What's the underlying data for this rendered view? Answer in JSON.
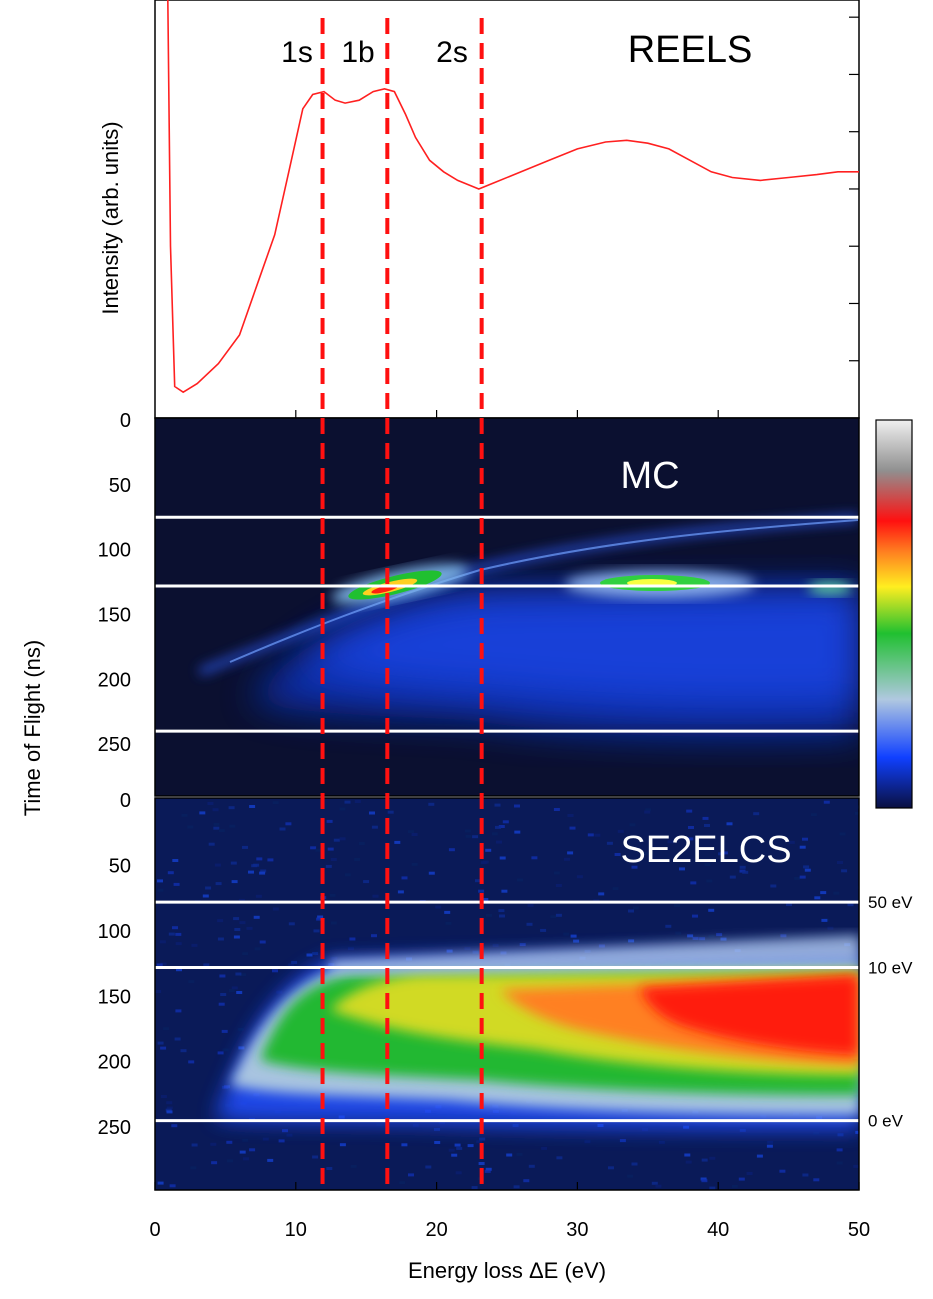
{
  "chart_data": [
    {
      "type": "line",
      "title": "REELS",
      "ylabel": "Intensity (arb. units)",
      "xlim": [
        0,
        50
      ],
      "ylim": [
        0,
        7.3
      ],
      "yticks_labeled": [
        "0"
      ],
      "series": [
        {
          "color": "#ff2020",
          "x": [
            0.9,
            1.1,
            1.4,
            2.0,
            3.0,
            4.5,
            6.0,
            7.5,
            8.5,
            9.5,
            10.5,
            11.2,
            12.0,
            12.8,
            13.5,
            14.5,
            15.5,
            16.3,
            17.0,
            17.8,
            18.5,
            19.5,
            20.5,
            21.5,
            22.5,
            23.0,
            24.0,
            26.0,
            28.0,
            30.0,
            32.0,
            33.5,
            35.0,
            36.5,
            38.0,
            39.5,
            41.0,
            43.0,
            45.0,
            47.0,
            48.5,
            50.0
          ],
          "y": [
            7.5,
            3.0,
            0.55,
            0.45,
            0.6,
            0.95,
            1.45,
            2.5,
            3.2,
            4.3,
            5.4,
            5.65,
            5.7,
            5.55,
            5.5,
            5.55,
            5.7,
            5.75,
            5.7,
            5.3,
            4.9,
            4.5,
            4.3,
            4.15,
            4.05,
            4.0,
            4.1,
            4.3,
            4.5,
            4.7,
            4.82,
            4.85,
            4.8,
            4.7,
            4.5,
            4.3,
            4.2,
            4.15,
            4.2,
            4.25,
            4.3,
            4.3
          ]
        }
      ],
      "annotations": [
        "1s",
        "1b",
        "2s"
      ]
    },
    {
      "type": "heatmap",
      "title": "MC",
      "ylabel": "Time of Flight (ns)",
      "xlim": [
        0,
        50
      ],
      "ylim": [
        0,
        290
      ],
      "yticks": [
        0,
        50,
        100,
        150,
        200,
        250
      ],
      "hlines": [
        75,
        128,
        240
      ]
    },
    {
      "type": "heatmap",
      "title": "SE2ELCS",
      "ylabel": "Time of Flight (ns)",
      "xlabel": "Energy loss ΔE (eV)",
      "xlim": [
        0,
        50
      ],
      "ylim": [
        0,
        298
      ],
      "xticks": [
        0,
        10,
        20,
        30,
        40,
        50
      ],
      "yticks": [
        0,
        50,
        100,
        150,
        200,
        250
      ],
      "hlines": [
        {
          "tof": 78,
          "label": "50 eV"
        },
        {
          "tof": 128,
          "label": "10 eV"
        },
        {
          "tof": 245,
          "label": "0 eV"
        }
      ]
    }
  ],
  "vlines_ev": [
    11.9,
    16.5,
    23.2
  ],
  "colorbar": {
    "stops": [
      "#0a1040",
      "#1040ff",
      "#b0c8e0",
      "#20c030",
      "#ffee20",
      "#ff8020",
      "#ff1010",
      "#909090",
      "#f0f0f0"
    ]
  }
}
